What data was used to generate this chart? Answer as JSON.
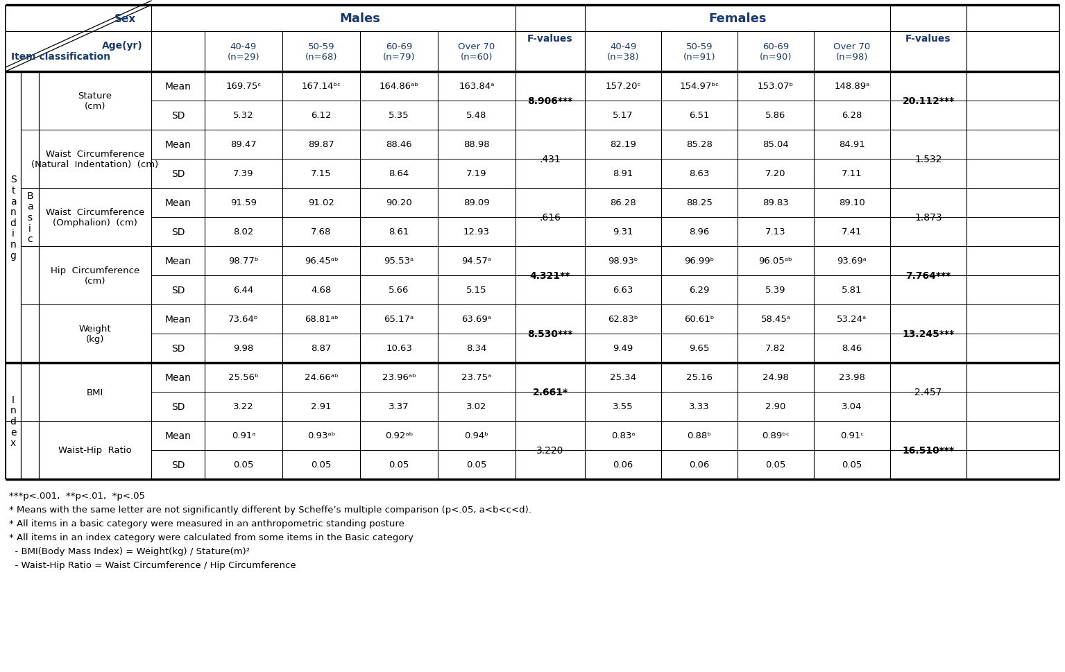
{
  "male_ages": [
    "40-49\n(n=29)",
    "50-59\n(n=68)",
    "60-69\n(n=79)",
    "Over 70\n(n=60)"
  ],
  "female_ages": [
    "40-49\n(n=38)",
    "50-59\n(n=91)",
    "60-69\n(n=90)",
    "Over 70\n(n=98)"
  ],
  "rows": [
    {
      "item": "Stature\n(cm)",
      "male_vals": [
        "169.75ᶜ",
        "167.14ᵇᶜ",
        "164.86ᵃᵇ",
        "163.84ᵃ"
      ],
      "male_sd": [
        "5.32",
        "6.12",
        "5.35",
        "5.48"
      ],
      "f_male": "8.906***",
      "female_vals": [
        "157.20ᶜ",
        "154.97ᵇᶜ",
        "153.07ᵇ",
        "148.89ᵃ"
      ],
      "female_sd": [
        "5.17",
        "6.51",
        "5.86",
        "6.28"
      ],
      "f_female": "20.112***"
    },
    {
      "item": "Waist  Circumference\n(Natural  Indentation)  (cm)",
      "male_vals": [
        "89.47",
        "89.87",
        "88.46",
        "88.98"
      ],
      "male_sd": [
        "7.39",
        "7.15",
        "8.64",
        "7.19"
      ],
      "f_male": ".431",
      "female_vals": [
        "82.19",
        "85.28",
        "85.04",
        "84.91"
      ],
      "female_sd": [
        "8.91",
        "8.63",
        "7.20",
        "7.11"
      ],
      "f_female": "1.532"
    },
    {
      "item": "Waist  Circumference\n(Omphalion)  (cm)",
      "male_vals": [
        "91.59",
        "91.02",
        "90.20",
        "89.09"
      ],
      "male_sd": [
        "8.02",
        "7.68",
        "8.61",
        "12.93"
      ],
      "f_male": ".616",
      "female_vals": [
        "86.28",
        "88.25",
        "89.83",
        "89.10"
      ],
      "female_sd": [
        "9.31",
        "8.96",
        "7.13",
        "7.41"
      ],
      "f_female": "1.873"
    },
    {
      "item": "Hip  Circumference\n(cm)",
      "male_vals": [
        "98.77ᵇ",
        "96.45ᵃᵇ",
        "95.53ᵃ",
        "94.57ᵃ"
      ],
      "male_sd": [
        "6.44",
        "4.68",
        "5.66",
        "5.15"
      ],
      "f_male": "4.321**",
      "female_vals": [
        "98.93ᵇ",
        "96.99ᵇ",
        "96.05ᵃᵇ",
        "93.69ᵃ"
      ],
      "female_sd": [
        "6.63",
        "6.29",
        "5.39",
        "5.81"
      ],
      "f_female": "7.764***"
    },
    {
      "item": "Weight\n(kg)",
      "male_vals": [
        "73.64ᵇ",
        "68.81ᵃᵇ",
        "65.17ᵃ",
        "63.69ᵃ"
      ],
      "male_sd": [
        "9.98",
        "8.87",
        "10.63",
        "8.34"
      ],
      "f_male": "8.530***",
      "female_vals": [
        "62.83ᵇ",
        "60.61ᵇ",
        "58.45ᵃ",
        "53.24ᵃ"
      ],
      "female_sd": [
        "9.49",
        "9.65",
        "7.82",
        "8.46"
      ],
      "f_female": "13.245***"
    },
    {
      "item": "BMI",
      "male_vals": [
        "25.56ᵇ",
        "24.66ᵃᵇ",
        "23.96ᵃᵇ",
        "23.75ᵃ"
      ],
      "male_sd": [
        "3.22",
        "2.91",
        "3.37",
        "3.02"
      ],
      "f_male": "2.661*",
      "female_vals": [
        "25.34",
        "25.16",
        "24.98",
        "23.98"
      ],
      "female_sd": [
        "3.55",
        "3.33",
        "2.90",
        "3.04"
      ],
      "f_female": "2.457"
    },
    {
      "item": "Waist-Hip  Ratio",
      "male_vals": [
        "0.91ᵃ",
        "0.93ᵃᵇ",
        "0.92ᵃᵇ",
        "0.94ᵇ"
      ],
      "male_sd": [
        "0.05",
        "0.05",
        "0.05",
        "0.05"
      ],
      "f_male": "3.220",
      "female_vals": [
        "0.83ᵃ",
        "0.88ᵇ",
        "0.89ᵇᶜ",
        "0.91ᶜ"
      ],
      "female_sd": [
        "0.06",
        "0.06",
        "0.05",
        "0.05"
      ],
      "f_female": "16.510***"
    }
  ],
  "footnotes": [
    "***p<.001,  **p<.01,  *p<.05",
    "* Means with the same letter are not significantly different by Scheffe’s multiple comparison (p<.05, a<b<c<d).",
    "* All items in a basic category were measured in an anthropometric standing posture",
    "* All items in an index category were calculated from some items in the Basic category",
    "  - BMI(Body Mass Index) = Weight(kg) / Stature(m)²",
    "  - Waist-Hip Ratio = Waist Circumference / Hip Circumference"
  ],
  "text_color": "#000000",
  "header_color": "#1a3a6e",
  "bold_blue": "#1a3a6e"
}
